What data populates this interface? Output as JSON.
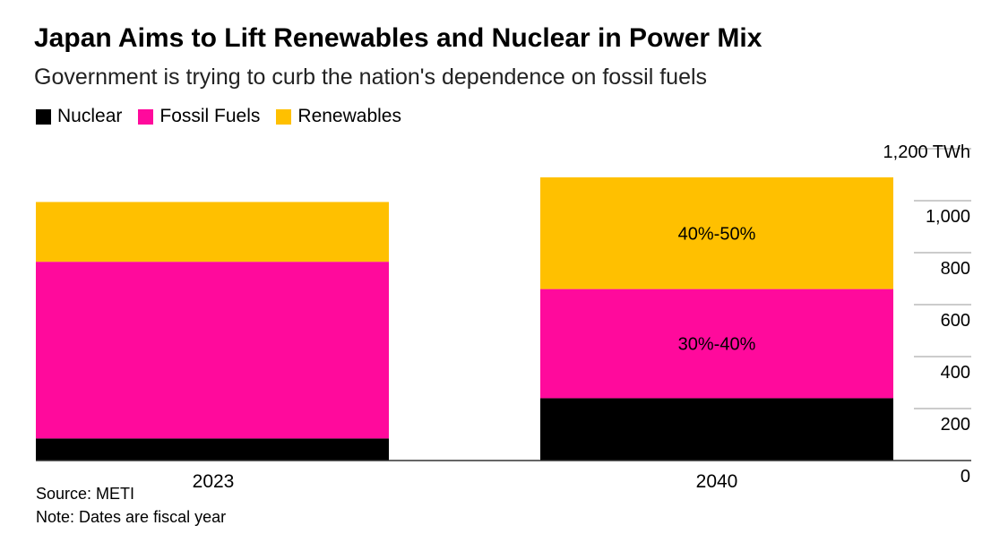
{
  "title": "Japan Aims to Lift Renewables and Nuclear in Power Mix",
  "subtitle": "Government is trying to curb the nation's dependence on fossil fuels",
  "legend": [
    {
      "label": "Nuclear",
      "color": "#000000"
    },
    {
      "label": "Fossil Fuels",
      "color": "#ff0a9c"
    },
    {
      "label": "Renewables",
      "color": "#ffc000"
    }
  ],
  "source": "Source: METI",
  "note": "Note: Dates are fiscal year",
  "chart_data": {
    "type": "bar",
    "stacked": true,
    "categories": [
      "2023",
      "2040"
    ],
    "series": [
      {
        "name": "Nuclear",
        "color": "#000000",
        "values": [
          85,
          240
        ]
      },
      {
        "name": "Fossil Fuels",
        "color": "#ff0a9c",
        "values": [
          680,
          420
        ]
      },
      {
        "name": "Renewables",
        "color": "#ffc000",
        "values": [
          230,
          430
        ]
      }
    ],
    "bar_labels": [
      {
        "category": "2040",
        "series": "Fossil Fuels",
        "text": "30%-40%"
      },
      {
        "category": "2040",
        "series": "Renewables",
        "text": "40%-50%"
      }
    ],
    "ylim": [
      0,
      1200
    ],
    "yticks": [
      0,
      200,
      400,
      600,
      800,
      1000,
      1200
    ],
    "ytick_labels": [
      "0",
      "200",
      "400",
      "600",
      "800",
      "1,000",
      "1,200"
    ],
    "yunit": "TWh",
    "y_axis_side": "right",
    "grid": true
  }
}
